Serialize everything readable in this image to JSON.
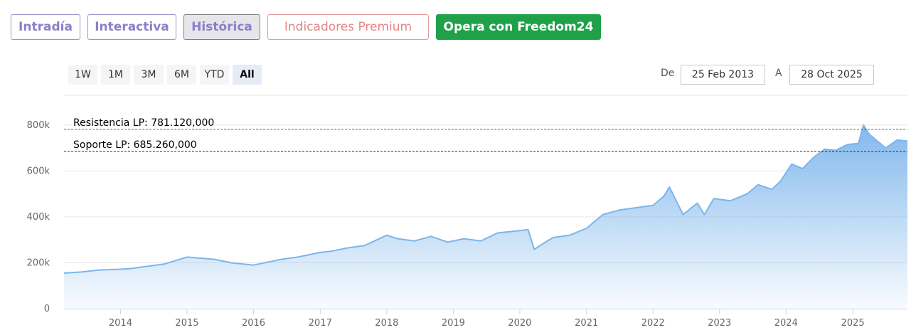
{
  "tabs": [
    {
      "label": "Intradía"
    },
    {
      "label": "Interactiva"
    },
    {
      "label": "Histórica"
    },
    {
      "label": "Indicadores Premium"
    },
    {
      "label": "Opera con Freedom24"
    }
  ],
  "range_buttons": [
    "1W",
    "1M",
    "3M",
    "6M",
    "YTD",
    "All"
  ],
  "active_range": "All",
  "date_range": {
    "from_label": "De",
    "from": "25 Feb 2013",
    "to_label": "A",
    "to": "28 Oct 2025"
  },
  "colors": {
    "line": "#7cb5ec",
    "resistance": "#2e8b2e",
    "support": "#8b0000",
    "active_tab_bg": "#e6e6ea",
    "cta_bg": "#1fa14a"
  },
  "chart_data": {
    "type": "area",
    "title": "",
    "xlabel": "",
    "ylabel": "",
    "ylim": [
      0,
      880000
    ],
    "xlim": [
      "2013-02-25",
      "2025-10-28"
    ],
    "y_ticks": [
      "0",
      "200k",
      "400k",
      "600k",
      "800k"
    ],
    "x_ticks": [
      "2014",
      "2015",
      "2016",
      "2017",
      "2018",
      "2019",
      "2020",
      "2021",
      "2022",
      "2023",
      "2024",
      "2025"
    ],
    "grid": true,
    "reference_lines": [
      {
        "label": "Resistencia LP: 781.120,000",
        "value": 781120
      },
      {
        "label": "Soporte LP: 685.260,000",
        "value": 685260
      }
    ],
    "series": [
      {
        "x": [
          "2013-02-25",
          "2013-06-01",
          "2013-09-01",
          "2014-01-01",
          "2014-03-01",
          "2014-06-01",
          "2014-09-01",
          "2015-01-01",
          "2015-06-01",
          "2015-09-01",
          "2016-01-01",
          "2016-03-01",
          "2016-06-01",
          "2016-09-01",
          "2017-01-01",
          "2017-03-01",
          "2017-06-01",
          "2017-09-01",
          "2018-01-01",
          "2018-03-01",
          "2018-06-01",
          "2018-09-01",
          "2018-12-01",
          "2019-03-01",
          "2019-06-01",
          "2019-09-01",
          "2020-01-01",
          "2020-02-15",
          "2020-03-20",
          "2020-05-01",
          "2020-07-01",
          "2020-10-01",
          "2021-01-01",
          "2021-04-01",
          "2021-07-01",
          "2021-10-01",
          "2022-01-01",
          "2022-03-01",
          "2022-04-01",
          "2022-06-15",
          "2022-09-01",
          "2022-10-10",
          "2022-12-01",
          "2023-03-01",
          "2023-06-01",
          "2023-08-01",
          "2023-10-15",
          "2023-12-01",
          "2024-02-01",
          "2024-04-01",
          "2024-06-01",
          "2024-08-01",
          "2024-10-01",
          "2024-12-01",
          "2025-02-01",
          "2025-03-01",
          "2025-04-01",
          "2025-05-01",
          "2025-07-01",
          "2025-09-01",
          "2025-10-28"
        ],
        "values": [
          155000,
          160000,
          168000,
          172000,
          175000,
          185000,
          195000,
          225000,
          215000,
          200000,
          190000,
          200000,
          215000,
          225000,
          245000,
          250000,
          265000,
          275000,
          320000,
          305000,
          295000,
          315000,
          290000,
          305000,
          295000,
          330000,
          340000,
          345000,
          258000,
          280000,
          310000,
          320000,
          350000,
          410000,
          430000,
          440000,
          450000,
          490000,
          530000,
          410000,
          460000,
          410000,
          480000,
          470000,
          500000,
          540000,
          520000,
          555000,
          630000,
          610000,
          660000,
          695000,
          690000,
          715000,
          720000,
          800000,
          760000,
          740000,
          700000,
          735000,
          730000
        ]
      }
    ]
  }
}
